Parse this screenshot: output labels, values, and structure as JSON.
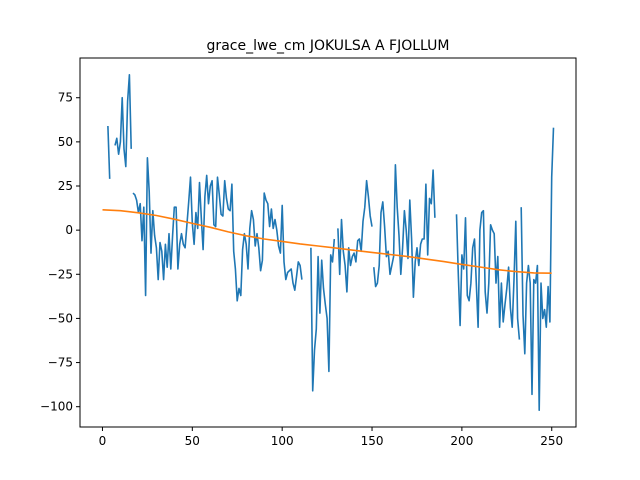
{
  "chart_data": {
    "type": "line",
    "title": "grace_lwe_cm JOKULSA A FJOLLUM",
    "xlabel": "",
    "ylabel": "",
    "xlim": [
      -12.5,
      263.5
    ],
    "ylim": [
      -111.5,
      97.5
    ],
    "xticks": [
      0,
      50,
      100,
      150,
      200,
      250
    ],
    "yticks": [
      -100,
      -75,
      -50,
      -25,
      0,
      25,
      50,
      75
    ],
    "grid": false,
    "legend": "none",
    "series": [
      {
        "color": "#1f77b4",
        "segments": [
          {
            "x": [
              3,
              4
            ],
            "y": [
              59,
              29
            ]
          },
          {
            "x": [
              7,
              8,
              9,
              10,
              11,
              12,
              13,
              14,
              15,
              16
            ],
            "y": [
              48,
              52,
              43,
              50,
              75,
              46,
              36,
              73,
              88,
              46
            ]
          },
          {
            "x": [
              17,
              18,
              19,
              20,
              21,
              22,
              23,
              24,
              25,
              26,
              27,
              28,
              29,
              30,
              31,
              32,
              33,
              34,
              35,
              36,
              37,
              38,
              39,
              40,
              41,
              42,
              43,
              44,
              45,
              46,
              47,
              48,
              49,
              50,
              51,
              52,
              53,
              54,
              55,
              56,
              57,
              58,
              59,
              60,
              61,
              62,
              63,
              64,
              65,
              66,
              67,
              68,
              69,
              70,
              71,
              72,
              73,
              74,
              75,
              76,
              77,
              78,
              79,
              80,
              81,
              82,
              83,
              84,
              85,
              86,
              87,
              88,
              89,
              90,
              91,
              92,
              93,
              94,
              95,
              96,
              97,
              98,
              99,
              100,
              101,
              102,
              103,
              104,
              105,
              106,
              107,
              108,
              109,
              110,
              111
            ],
            "y": [
              21,
              20,
              17,
              10,
              15,
              -6,
              13,
              -37,
              41,
              22,
              -13,
              11,
              -3,
              -10,
              -28,
              -7,
              -12,
              -28,
              -8,
              -21,
              -2,
              -22,
              -3,
              13,
              13,
              -22,
              -8,
              -2,
              -8,
              -10,
              3,
              16,
              30,
              4,
              -8,
              10,
              1,
              27,
              7,
              -11,
              19,
              31,
              15,
              25,
              28,
              3,
              2,
              30,
              20,
              9,
              8,
              28,
              18,
              12,
              11,
              26,
              -12,
              -22,
              -40,
              -33,
              -37,
              -11,
              -2,
              -8,
              -22,
              1,
              11,
              6,
              -9,
              -2,
              -10,
              -23,
              -17,
              21,
              17,
              15,
              2,
              12,
              1,
              6,
              0,
              -9,
              -13,
              14,
              -18,
              -28,
              -24,
              -23,
              -22,
              -30,
              -34,
              -26,
              -18,
              -20,
              -28
            ]
          },
          {
            "x": [
              116,
              117,
              118,
              119,
              120,
              121,
              122,
              123,
              124,
              125,
              126,
              127,
              128,
              129
            ],
            "y": [
              -10,
              -91,
              -68,
              -56,
              -15,
              -47,
              -17,
              -33,
              -42,
              -50,
              -80,
              -14,
              -18,
              -5
            ]
          },
          {
            "x": [
              131,
              132,
              133,
              134,
              135,
              136,
              137,
              138,
              139,
              140,
              141,
              142,
              143,
              144,
              145,
              146,
              147,
              148,
              149,
              150
            ],
            "y": [
              1,
              -25,
              6,
              -12,
              -20,
              -35,
              -10,
              -20,
              -15,
              -13,
              -18,
              -6,
              -5,
              -12,
              5,
              13,
              28,
              19,
              8,
              2
            ]
          },
          {
            "x": [
              151,
              152,
              153,
              154,
              155,
              156,
              157,
              158,
              159,
              160,
              161,
              162,
              163,
              164,
              165,
              166,
              167,
              168,
              169,
              170,
              171,
              172,
              173,
              174,
              175,
              176,
              177,
              178,
              179,
              180,
              181,
              182,
              183,
              184,
              185
            ],
            "y": [
              -21,
              -32,
              -30,
              -20,
              10,
              16,
              2,
              -15,
              -12,
              -25,
              -20,
              -15,
              37,
              13,
              -3,
              -25,
              -10,
              11,
              0,
              -16,
              17,
              -5,
              -38,
              -18,
              -10,
              -20,
              -8,
              -5,
              -5,
              26,
              -14,
              18,
              15,
              34,
              7
            ]
          },
          {
            "x": [
              197,
              198,
              199,
              200,
              201,
              202,
              203,
              204,
              205,
              206,
              207,
              208,
              209,
              210,
              211,
              212,
              213,
              214,
              215,
              216,
              217,
              218,
              219,
              220,
              221,
              222,
              223,
              224,
              225,
              226,
              227,
              228,
              229,
              230,
              231,
              232
            ],
            "y": [
              9,
              -25,
              -54,
              -14,
              -22,
              7,
              -37,
              -40,
              -30,
              -10,
              -5,
              -30,
              -55,
              0,
              10,
              11,
              -35,
              -47,
              -30,
              3,
              0,
              -2,
              -30,
              -15,
              -55,
              -30,
              -52,
              -42,
              -33,
              -21,
              -44,
              -55,
              -28,
              5,
              -50,
              -62
            ]
          },
          {
            "x": [
              233,
              234,
              235,
              236,
              237,
              238,
              239,
              240,
              241,
              242,
              243,
              244,
              245,
              246,
              247,
              248,
              249,
              250,
              251
            ],
            "y": [
              13,
              -48,
              -70,
              -30,
              -20,
              -30,
              -93,
              -28,
              -30,
              -20,
              -102,
              -30,
              -50,
              -45,
              -55,
              -32,
              -52,
              30,
              58
            ]
          }
        ]
      },
      {
        "color": "#ff7f0e",
        "segments": [
          {
            "x": [
              0,
              10,
              20,
              30,
              40,
              50,
              60,
              70,
              80,
              90,
              100,
              110,
              120,
              130,
              140,
              150,
              160,
              170,
              180,
              190,
              200,
              210,
              220,
              230,
              240,
              250
            ],
            "y": [
              11.5,
              11.0,
              9.8,
              8.3,
              6.2,
              3.8,
              1.6,
              -1.0,
              -3.2,
              -5.0,
              -6.4,
              -7.8,
              -9.0,
              -10.2,
              -11.4,
              -12.6,
              -13.8,
              -15.0,
              -16.4,
              -17.8,
              -19.4,
              -20.9,
              -22.4,
              -23.5,
              -24.2,
              -24.4
            ]
          }
        ]
      }
    ]
  }
}
